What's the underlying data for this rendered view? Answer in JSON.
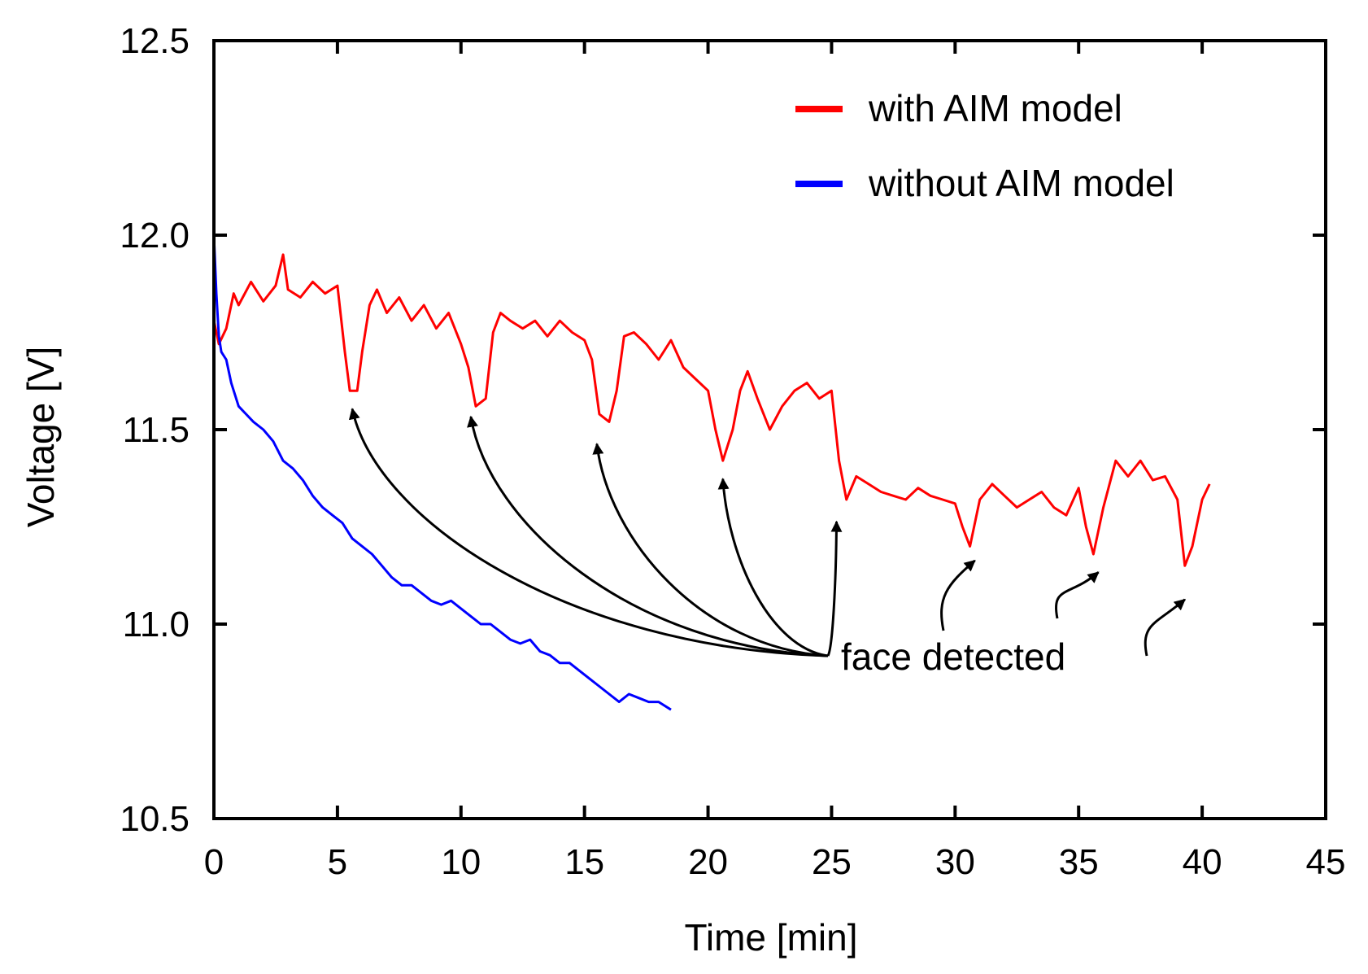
{
  "chart_data": {
    "type": "line",
    "title": "",
    "xlabel": "Time [min]",
    "ylabel": "Voltage [V]",
    "xlim": [
      0,
      45
    ],
    "ylim": [
      10.5,
      12.5
    ],
    "x_ticks": [
      0,
      5,
      10,
      15,
      20,
      25,
      30,
      35,
      40,
      45
    ],
    "x_tick_labels": [
      "0",
      "5",
      "10",
      "15",
      "20",
      "25",
      "30",
      "35",
      "40",
      "45"
    ],
    "y_ticks": [
      10.5,
      11.0,
      11.5,
      12.0,
      12.5
    ],
    "y_tick_labels": [
      "10.5",
      "11.0",
      "11.5",
      "12.0",
      "12.5"
    ],
    "legend_position": "top-right",
    "series": [
      {
        "name": "with AIM model",
        "color": "#ff0000",
        "x": [
          0,
          0.2,
          0.5,
          0.8,
          1.0,
          1.5,
          2.0,
          2.5,
          2.8,
          3.0,
          3.5,
          4.0,
          4.5,
          5.0,
          5.3,
          5.5,
          5.8,
          6.0,
          6.3,
          6.6,
          7.0,
          7.5,
          8.0,
          8.5,
          9.0,
          9.5,
          10.0,
          10.3,
          10.6,
          11.0,
          11.3,
          11.6,
          12.0,
          12.5,
          13.0,
          13.5,
          14.0,
          14.5,
          15.0,
          15.3,
          15.6,
          16.0,
          16.3,
          16.6,
          17.0,
          17.5,
          18.0,
          18.5,
          19.0,
          19.5,
          20.0,
          20.3,
          20.6,
          21.0,
          21.3,
          21.6,
          22.0,
          22.5,
          23.0,
          23.5,
          24.0,
          24.5,
          25.0,
          25.3,
          25.6,
          26.0,
          26.5,
          27.0,
          27.5,
          28.0,
          28.5,
          29.0,
          29.5,
          30.0,
          30.3,
          30.6,
          31.0,
          31.5,
          32.0,
          32.5,
          33.0,
          33.5,
          34.0,
          34.5,
          35.0,
          35.3,
          35.6,
          36.0,
          36.5,
          37.0,
          37.5,
          38.0,
          38.5,
          39.0,
          39.3,
          39.6,
          40.0,
          40.3
        ],
        "values": [
          11.78,
          11.72,
          11.76,
          11.85,
          11.82,
          11.88,
          11.83,
          11.87,
          11.95,
          11.86,
          11.84,
          11.88,
          11.85,
          11.87,
          11.7,
          11.6,
          11.6,
          11.7,
          11.82,
          11.86,
          11.8,
          11.84,
          11.78,
          11.82,
          11.76,
          11.8,
          11.72,
          11.66,
          11.56,
          11.58,
          11.75,
          11.8,
          11.78,
          11.76,
          11.78,
          11.74,
          11.78,
          11.75,
          11.73,
          11.68,
          11.54,
          11.52,
          11.6,
          11.74,
          11.75,
          11.72,
          11.68,
          11.73,
          11.66,
          11.63,
          11.6,
          11.5,
          11.42,
          11.5,
          11.6,
          11.65,
          11.58,
          11.5,
          11.56,
          11.6,
          11.62,
          11.58,
          11.6,
          11.42,
          11.32,
          11.38,
          11.36,
          11.34,
          11.33,
          11.32,
          11.35,
          11.33,
          11.32,
          11.31,
          11.25,
          11.2,
          11.32,
          11.36,
          11.33,
          11.3,
          11.32,
          11.34,
          11.3,
          11.28,
          11.35,
          11.25,
          11.18,
          11.3,
          11.42,
          11.38,
          11.42,
          11.37,
          11.38,
          11.32,
          11.15,
          11.2,
          11.32,
          11.36
        ]
      },
      {
        "name": "without AIM model",
        "color": "#0000ff",
        "x": [
          0,
          0.1,
          0.2,
          0.3,
          0.5,
          0.7,
          1.0,
          1.3,
          1.6,
          2.0,
          2.4,
          2.8,
          3.2,
          3.6,
          4.0,
          4.4,
          4.8,
          5.2,
          5.6,
          6.0,
          6.4,
          6.8,
          7.2,
          7.6,
          8.0,
          8.4,
          8.8,
          9.2,
          9.6,
          10.0,
          10.4,
          10.8,
          11.2,
          11.6,
          12.0,
          12.4,
          12.8,
          13.2,
          13.6,
          14.0,
          14.4,
          14.8,
          15.2,
          15.6,
          16.0,
          16.4,
          16.8,
          17.2,
          17.6,
          18.0,
          18.5
        ],
        "values": [
          12.0,
          11.85,
          11.74,
          11.7,
          11.68,
          11.62,
          11.56,
          11.54,
          11.52,
          11.5,
          11.47,
          11.42,
          11.4,
          11.37,
          11.33,
          11.3,
          11.28,
          11.26,
          11.22,
          11.2,
          11.18,
          11.15,
          11.12,
          11.1,
          11.1,
          11.08,
          11.06,
          11.05,
          11.06,
          11.04,
          11.02,
          11.0,
          11.0,
          10.98,
          10.96,
          10.95,
          10.96,
          10.93,
          10.92,
          10.9,
          10.9,
          10.88,
          10.86,
          10.84,
          10.82,
          10.8,
          10.82,
          10.81,
          10.8,
          10.8,
          10.78
        ]
      }
    ],
    "annotations": {
      "text": "face detected",
      "points": [
        [
          5.6,
          11.57
        ],
        [
          10.4,
          11.55
        ],
        [
          15.5,
          11.48
        ],
        [
          20.6,
          11.39
        ],
        [
          25.2,
          11.28
        ],
        [
          30.8,
          11.18
        ],
        [
          35.8,
          11.15
        ],
        [
          39.3,
          11.08
        ]
      ]
    }
  }
}
